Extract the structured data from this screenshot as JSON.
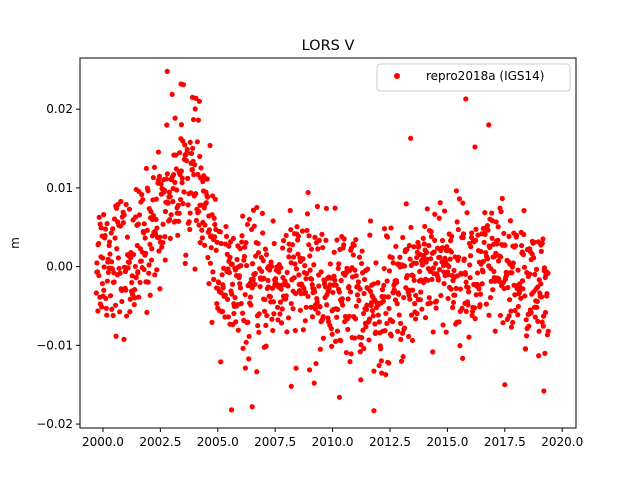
{
  "chart_data": {
    "type": "scatter",
    "title": "LORS V",
    "xlabel": "",
    "ylabel": "m",
    "xlim": [
      1999.0,
      2020.6
    ],
    "ylim": [
      -0.0205,
      0.0265
    ],
    "x_ticks": [
      2000.0,
      2002.5,
      2005.0,
      2007.5,
      2010.0,
      2012.5,
      2015.0,
      2017.5,
      2020.0
    ],
    "x_tick_labels": [
      "2000.0",
      "2002.5",
      "2005.0",
      "2007.5",
      "2010.0",
      "2012.5",
      "2015.0",
      "2017.5",
      "2020.0"
    ],
    "y_ticks": [
      -0.02,
      -0.01,
      0.0,
      0.01,
      0.02
    ],
    "y_tick_labels": [
      "−0.02",
      "−0.01",
      "0.00",
      "0.01",
      "0.02"
    ],
    "legend": {
      "placement": "upper right",
      "entries": [
        "repro2018a (IGS14)"
      ]
    },
    "grid": false,
    "series": [
      {
        "name": "repro2018a (IGS14)",
        "color": "#ff0000",
        "marker": "circle",
        "x_range": [
          1999.7,
          2019.4
        ],
        "points_per_year": 60,
        "trend": [
          [
            1999.7,
            0.001
          ],
          [
            2000.5,
            0.0015
          ],
          [
            2001.0,
            0.0
          ],
          [
            2001.5,
            0.001
          ],
          [
            2002.0,
            0.004
          ],
          [
            2002.5,
            0.007
          ],
          [
            2003.0,
            0.0105
          ],
          [
            2003.5,
            0.012
          ],
          [
            2004.0,
            0.0105
          ],
          [
            2004.5,
            0.006
          ],
          [
            2005.0,
            0.0
          ],
          [
            2005.5,
            -0.003
          ],
          [
            2007.0,
            -0.0025
          ],
          [
            2008.5,
            -0.0015
          ],
          [
            2010.0,
            -0.003
          ],
          [
            2011.0,
            -0.0035
          ],
          [
            2011.8,
            -0.006
          ],
          [
            2012.5,
            -0.0045
          ],
          [
            2013.5,
            -0.002
          ],
          [
            2014.0,
            0.0008
          ],
          [
            2015.0,
            0.0
          ],
          [
            2016.0,
            -0.001
          ],
          [
            2017.0,
            -0.0005
          ],
          [
            2018.0,
            -0.001
          ],
          [
            2018.8,
            -0.003
          ],
          [
            2019.4,
            -0.0055
          ]
        ],
        "spread": 0.0042,
        "outliers": [
          [
            2002.8,
            0.0248
          ],
          [
            2003.4,
            0.0232
          ],
          [
            2003.9,
            0.0215
          ],
          [
            2004.2,
            0.021
          ],
          [
            2013.4,
            0.0163
          ],
          [
            2015.8,
            0.0213
          ],
          [
            2016.2,
            0.0152
          ],
          [
            2016.8,
            0.018
          ],
          [
            2005.6,
            -0.0182
          ],
          [
            2006.5,
            -0.0178
          ],
          [
            2010.3,
            -0.0166
          ],
          [
            2011.8,
            -0.0183
          ],
          [
            2008.2,
            -0.0152
          ],
          [
            2009.2,
            -0.0148
          ],
          [
            2017.5,
            -0.015
          ],
          [
            2019.2,
            -0.0158
          ]
        ]
      }
    ]
  }
}
